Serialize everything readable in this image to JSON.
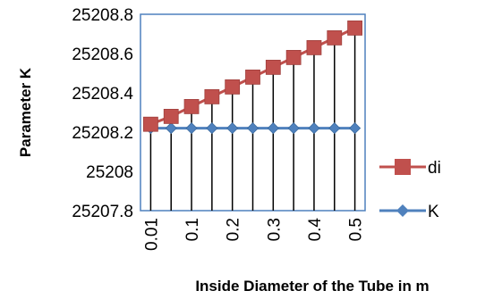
{
  "chart_data": {
    "type": "line",
    "xlabel": "Inside Diameter of the Tube in m",
    "ylabel": "Parameter K",
    "ylim": [
      25207.8,
      25208.8
    ],
    "yticks": [
      "25207.8",
      "25208",
      "25208.2",
      "25208.4",
      "25208.6",
      "25208.8"
    ],
    "ytick_values": [
      25207.8,
      25208.0,
      25208.2,
      25208.4,
      25208.6,
      25208.8
    ],
    "categories": [
      "0.01",
      "",
      "0.1",
      "",
      "0.2",
      "",
      "0.3",
      "",
      "0.4",
      "",
      "0.5"
    ],
    "grid": false,
    "drop_lines": true,
    "legend_position": "right",
    "series": [
      {
        "name": "di",
        "color": "#c0504d",
        "marker": "square",
        "values": [
          25208.24,
          25208.28,
          25208.33,
          25208.38,
          25208.43,
          25208.48,
          25208.53,
          25208.58,
          25208.63,
          25208.68,
          25208.73
        ]
      },
      {
        "name": "K",
        "color": "#4f81bd",
        "marker": "diamond",
        "values": [
          25208.22,
          25208.22,
          25208.22,
          25208.22,
          25208.22,
          25208.22,
          25208.22,
          25208.22,
          25208.22,
          25208.22,
          25208.22
        ]
      }
    ]
  }
}
